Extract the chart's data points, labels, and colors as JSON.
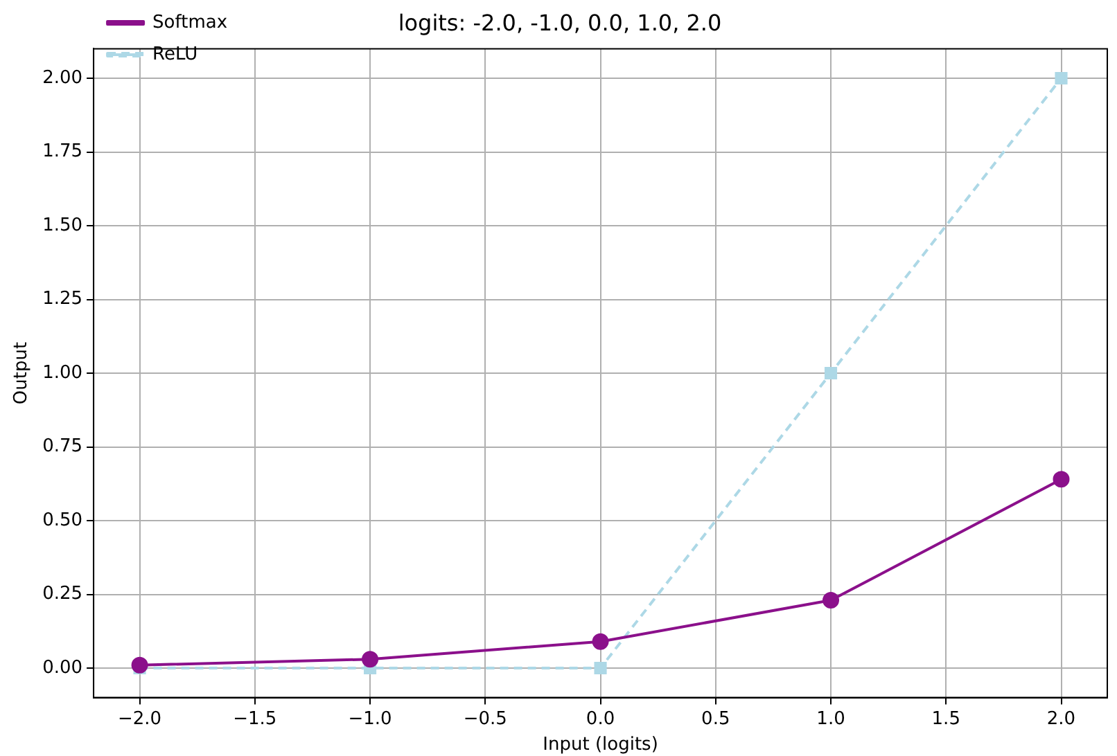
{
  "chart_data": {
    "type": "line",
    "title": "logits: -2.0, -1.0, 0.0, 1.0, 2.0",
    "xlabel": "Input (logits)",
    "ylabel": "Output",
    "x": [
      -2,
      -1,
      0,
      1,
      2
    ],
    "series": [
      {
        "name": "Softmax",
        "color": "#8b108b",
        "values": [
          0.01,
          0.03,
          0.09,
          0.23,
          0.64
        ],
        "marker": "circle",
        "line_style": "solid"
      },
      {
        "name": "ReLU",
        "color": "#add8e6",
        "values": [
          0,
          0,
          0,
          1,
          2
        ],
        "marker": "square",
        "line_style": "dashed"
      }
    ],
    "xlim": [
      -2.2,
      2.2
    ],
    "xticks": [
      {
        "value": -2,
        "label": "−2.0"
      },
      {
        "value": -1.5,
        "label": "−1.5"
      },
      {
        "value": -1,
        "label": "−1.0"
      },
      {
        "value": -0.5,
        "label": "−0.5"
      },
      {
        "value": 0,
        "label": "0.0"
      },
      {
        "value": 0.5,
        "label": "0.5"
      },
      {
        "value": 1,
        "label": "1.0"
      },
      {
        "value": 1.5,
        "label": "1.5"
      },
      {
        "value": 2,
        "label": "2.0"
      }
    ],
    "ylim": [
      -0.1,
      2.1
    ],
    "yticks": [
      {
        "value": 0,
        "label": "0.00"
      },
      {
        "value": 0.25,
        "label": "0.25"
      },
      {
        "value": 0.5,
        "label": "0.50"
      },
      {
        "value": 0.75,
        "label": "0.75"
      },
      {
        "value": 1,
        "label": "1.00"
      },
      {
        "value": 1.25,
        "label": "1.25"
      },
      {
        "value": 1.5,
        "label": "1.50"
      },
      {
        "value": 1.75,
        "label": "1.75"
      },
      {
        "value": 2,
        "label": "2.00"
      }
    ],
    "grid": true,
    "legend": "top left"
  }
}
